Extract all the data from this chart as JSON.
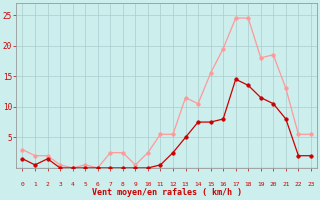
{
  "x": [
    0,
    1,
    2,
    3,
    4,
    5,
    6,
    7,
    8,
    9,
    10,
    11,
    12,
    13,
    14,
    15,
    16,
    17,
    18,
    19,
    20,
    21,
    22,
    23
  ],
  "y_mean": [
    1.5,
    0.5,
    1.5,
    0.0,
    0.0,
    0.0,
    0.0,
    0.0,
    0.0,
    0.0,
    0.0,
    0.5,
    2.5,
    5.0,
    7.5,
    7.5,
    8.0,
    14.5,
    13.5,
    11.5,
    10.5,
    8.0,
    2.0,
    2.0
  ],
  "y_gust": [
    3.0,
    2.0,
    2.0,
    0.5,
    0.0,
    0.5,
    0.0,
    2.5,
    2.5,
    0.5,
    2.5,
    5.5,
    5.5,
    11.5,
    10.5,
    15.5,
    19.5,
    24.5,
    24.5,
    18.0,
    18.5,
    13.0,
    5.5,
    5.5
  ],
  "color_mean": "#cc0000",
  "color_gust": "#ff9999",
  "bg_color": "#cceeed",
  "grid_color": "#aacccc",
  "axis_color": "#cc0000",
  "tick_color": "#cc0000",
  "xlabel": "Vent moyen/en rafales ( km/h )",
  "ylim": [
    0,
    27
  ],
  "yticks": [
    5,
    10,
    15,
    20,
    25
  ],
  "xticks": [
    0,
    1,
    2,
    3,
    4,
    5,
    6,
    7,
    8,
    9,
    10,
    11,
    12,
    13,
    14,
    15,
    16,
    17,
    18,
    19,
    20,
    21,
    22,
    23
  ]
}
